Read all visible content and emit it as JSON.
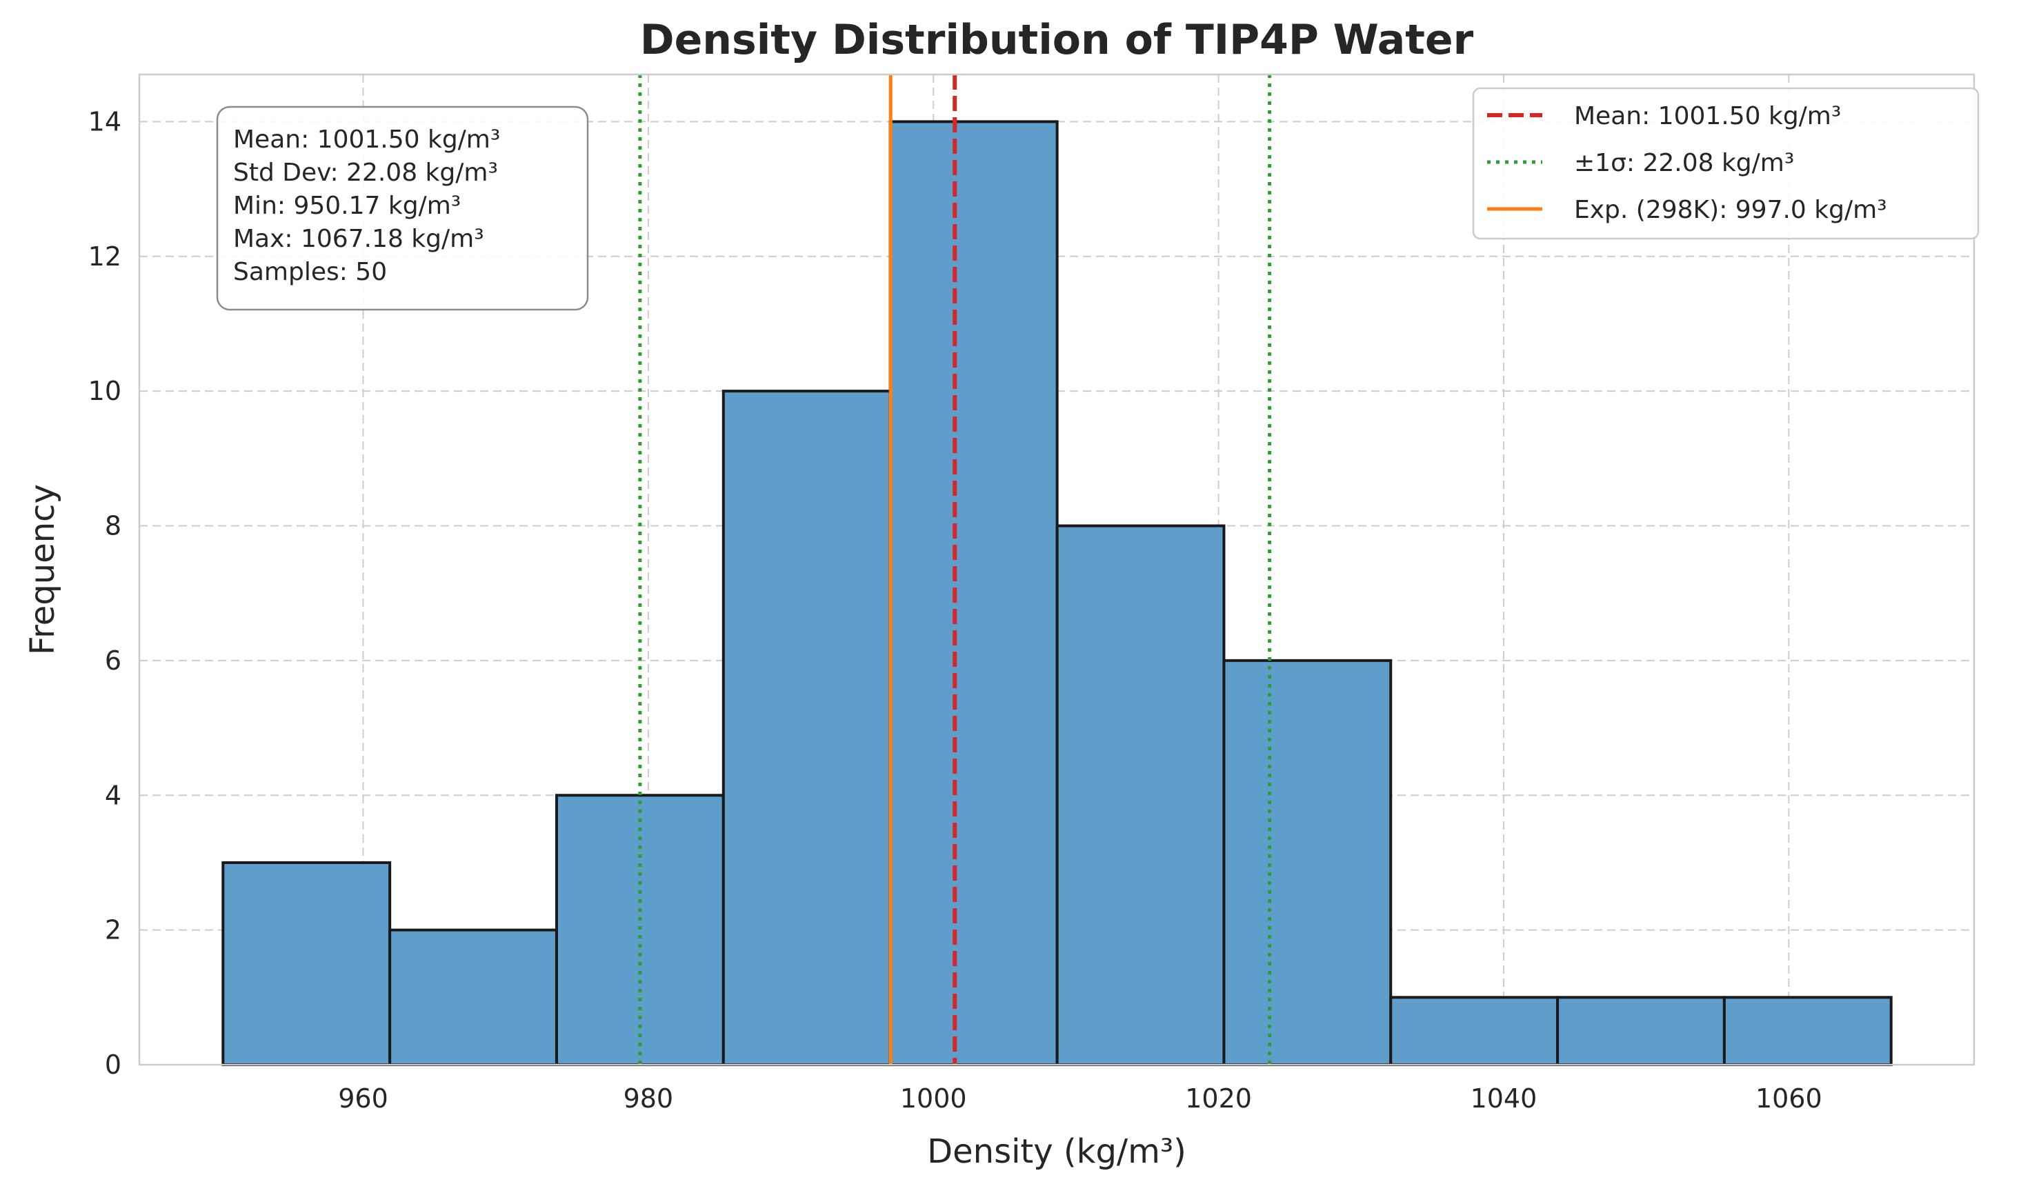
{
  "chart_data": {
    "type": "bar",
    "title": "Density Distribution of TIP4P Water",
    "xlabel": "Density (kg/m³)",
    "ylabel": "Frequency",
    "xlim": [
      944.3,
      1073.0
    ],
    "ylim": [
      0,
      14.7
    ],
    "x_ticks": [
      960,
      980,
      1000,
      1020,
      1040,
      1060
    ],
    "y_ticks": [
      0,
      2,
      4,
      6,
      8,
      10,
      12,
      14
    ],
    "grid": true,
    "bins": [
      {
        "x0": 950.17,
        "x1": 961.87,
        "count": 3
      },
      {
        "x0": 961.87,
        "x1": 973.57,
        "count": 2
      },
      {
        "x0": 973.57,
        "x1": 985.27,
        "count": 4
      },
      {
        "x0": 985.27,
        "x1": 996.97,
        "count": 10
      },
      {
        "x0": 996.97,
        "x1": 1008.68,
        "count": 14
      },
      {
        "x0": 1008.68,
        "x1": 1020.38,
        "count": 8
      },
      {
        "x0": 1020.38,
        "x1": 1032.08,
        "count": 6
      },
      {
        "x0": 1032.08,
        "x1": 1043.78,
        "count": 1
      },
      {
        "x0": 1043.78,
        "x1": 1055.48,
        "count": 1
      },
      {
        "x0": 1055.48,
        "x1": 1067.18,
        "count": 1
      }
    ],
    "reference_lines": [
      {
        "name": "Mean: 1001.50 kg/m³",
        "x": [
          1001.5
        ],
        "color": "#d62728",
        "style": "dashed"
      },
      {
        "name": "±1σ: 22.08 kg/m³",
        "x": [
          979.42,
          1023.58
        ],
        "color": "#2ca02c",
        "style": "dotted"
      },
      {
        "name": "Exp. (298K): 997.0 kg/m³",
        "x": [
          997.0
        ],
        "color": "#ff7f0e",
        "style": "solid"
      }
    ],
    "legend_position": "top-right",
    "stats_box": [
      "Mean: 1001.50 kg/m³",
      "Std Dev: 22.08 kg/m³",
      "Min: 950.17 kg/m³",
      "Max: 1067.18 kg/m³",
      "Samples: 50"
    ],
    "bar_color": "#5f9dcb"
  }
}
